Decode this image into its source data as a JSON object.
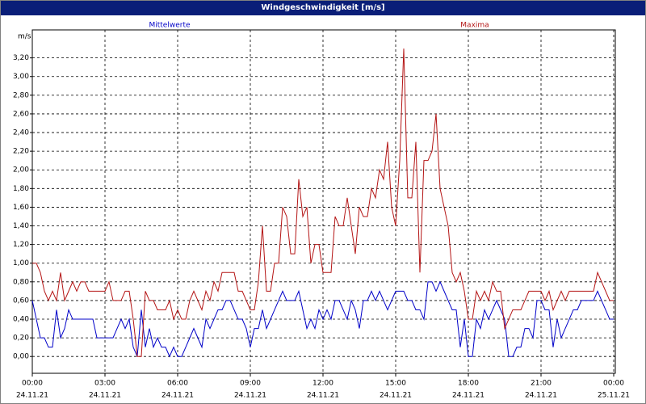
{
  "chart_data": {
    "type": "line",
    "title": "Windgeschwindigkeit [m/s]",
    "ylabel": "m/s",
    "x": [
      0,
      10,
      20,
      30,
      40,
      50,
      60,
      70,
      80,
      90,
      100,
      110,
      120,
      130,
      140,
      150,
      160,
      170,
      180,
      190,
      200,
      210,
      220,
      230,
      240,
      250,
      260,
      270,
      280,
      290,
      300,
      310,
      320,
      330,
      340,
      350,
      360,
      370,
      380,
      390,
      400,
      410,
      420,
      430,
      440,
      450,
      460,
      470,
      480,
      490,
      500,
      510,
      520,
      530,
      540,
      550,
      560,
      570,
      580,
      590,
      600,
      610,
      620,
      630,
      640,
      650,
      660,
      670,
      680,
      690,
      700,
      710,
      720,
      730,
      740,
      750,
      760,
      770,
      780,
      790,
      800,
      810,
      820,
      830,
      840,
      850,
      860,
      870,
      880,
      890,
      900,
      910,
      920,
      930,
      940,
      950,
      960,
      970,
      980,
      990,
      1000,
      1010,
      1020,
      1030,
      1040,
      1050,
      1060,
      1070,
      1080,
      1090,
      1100,
      1110,
      1120,
      1130,
      1140,
      1150,
      1160,
      1170,
      1180,
      1190,
      1200,
      1210,
      1220,
      1230,
      1240,
      1250,
      1260,
      1270,
      1280,
      1290,
      1300,
      1310,
      1320,
      1330,
      1340,
      1350,
      1360,
      1370,
      1380,
      1390,
      1400,
      1410,
      1420,
      1430,
      1440
    ],
    "series": [
      {
        "name": "Mittelwerte",
        "color": "#0000c8",
        "values": [
          0.6,
          0.4,
          0.2,
          0.2,
          0.1,
          0.1,
          0.5,
          0.2,
          0.3,
          0.5,
          0.4,
          0.4,
          0.4,
          0.4,
          0.4,
          0.4,
          0.2,
          0.2,
          0.2,
          0.2,
          0.2,
          0.3,
          0.4,
          0.3,
          0.4,
          0.1,
          0.0,
          0.5,
          0.1,
          0.3,
          0.1,
          0.2,
          0.1,
          0.1,
          0.0,
          0.1,
          0.0,
          0.0,
          0.1,
          0.2,
          0.3,
          0.2,
          0.1,
          0.4,
          0.3,
          0.4,
          0.5,
          0.5,
          0.6,
          0.6,
          0.5,
          0.4,
          0.4,
          0.3,
          0.1,
          0.3,
          0.3,
          0.5,
          0.3,
          0.4,
          0.5,
          0.6,
          0.7,
          0.6,
          0.6,
          0.6,
          0.7,
          0.5,
          0.3,
          0.4,
          0.3,
          0.5,
          0.4,
          0.5,
          0.4,
          0.6,
          0.6,
          0.5,
          0.4,
          0.6,
          0.5,
          0.3,
          0.6,
          0.6,
          0.7,
          0.6,
          0.7,
          0.6,
          0.5,
          0.6,
          0.7,
          0.7,
          0.7,
          0.6,
          0.6,
          0.5,
          0.5,
          0.4,
          0.8,
          0.8,
          0.7,
          0.8,
          0.7,
          0.6,
          0.5,
          0.5,
          0.1,
          0.4,
          0.0,
          0.0,
          0.4,
          0.3,
          0.5,
          0.4,
          0.5,
          0.6,
          0.5,
          0.4,
          0.0,
          0.0,
          0.1,
          0.1,
          0.3,
          0.3,
          0.2,
          0.6,
          0.6,
          0.5,
          0.5,
          0.1,
          0.4,
          0.2,
          0.3,
          0.4,
          0.5,
          0.5,
          0.6,
          0.6,
          0.6,
          0.6,
          0.7,
          0.6,
          0.5,
          0.4,
          0.4
        ]
      },
      {
        "name": "Maxima",
        "color": "#b41414",
        "values": [
          1.0,
          1.0,
          0.9,
          0.7,
          0.6,
          0.7,
          0.6,
          0.9,
          0.6,
          0.7,
          0.8,
          0.7,
          0.8,
          0.8,
          0.7,
          0.7,
          0.7,
          0.7,
          0.7,
          0.8,
          0.6,
          0.6,
          0.6,
          0.7,
          0.7,
          0.4,
          0.0,
          0.0,
          0.7,
          0.6,
          0.6,
          0.5,
          0.5,
          0.5,
          0.6,
          0.4,
          0.5,
          0.4,
          0.4,
          0.6,
          0.7,
          0.6,
          0.5,
          0.7,
          0.6,
          0.8,
          0.7,
          0.9,
          0.9,
          0.9,
          0.9,
          0.7,
          0.7,
          0.6,
          0.5,
          0.5,
          0.8,
          1.4,
          0.7,
          0.7,
          1.0,
          1.0,
          1.6,
          1.5,
          1.1,
          1.1,
          1.9,
          1.5,
          1.6,
          1.0,
          1.2,
          1.2,
          0.9,
          0.9,
          0.9,
          1.5,
          1.4,
          1.4,
          1.7,
          1.4,
          1.1,
          1.6,
          1.5,
          1.5,
          1.8,
          1.7,
          2.0,
          1.9,
          2.3,
          1.6,
          1.4,
          2.1,
          3.3,
          1.7,
          1.7,
          2.3,
          0.9,
          2.1,
          2.1,
          2.2,
          2.6,
          1.8,
          1.6,
          1.4,
          0.9,
          0.8,
          0.9,
          0.7,
          0.4,
          0.4,
          0.7,
          0.6,
          0.7,
          0.6,
          0.8,
          0.7,
          0.7,
          0.3,
          0.4,
          0.5,
          0.5,
          0.5,
          0.6,
          0.7,
          0.7,
          0.7,
          0.7,
          0.6,
          0.7,
          0.5,
          0.6,
          0.7,
          0.6,
          0.7,
          0.7,
          0.7,
          0.7,
          0.7,
          0.7,
          0.7,
          0.9,
          0.8,
          0.7,
          0.6,
          0.6
        ]
      }
    ],
    "xlim": [
      0,
      1440
    ],
    "xticks": [
      {
        "value": 0,
        "label": "00:00",
        "date": "24.11.21"
      },
      {
        "value": 180,
        "label": "03:00",
        "date": "24.11.21"
      },
      {
        "value": 360,
        "label": "06:00",
        "date": "24.11.21"
      },
      {
        "value": 540,
        "label": "09:00",
        "date": "24.11.21"
      },
      {
        "value": 720,
        "label": "12:00",
        "date": "24.11.21"
      },
      {
        "value": 900,
        "label": "15:00",
        "date": "24.11.21"
      },
      {
        "value": 1080,
        "label": "18:00",
        "date": "24.11.21"
      },
      {
        "value": 1260,
        "label": "21:00",
        "date": "24.11.21"
      },
      {
        "value": 1440,
        "label": "00:00",
        "date": "25.11.21"
      }
    ],
    "ylim": [
      -0.18,
      3.5
    ],
    "yticks": [
      {
        "value": 0,
        "label": "0,00"
      },
      {
        "value": 0.2,
        "label": "0,20"
      },
      {
        "value": 0.4,
        "label": "0,40"
      },
      {
        "value": 0.6,
        "label": "0,60"
      },
      {
        "value": 0.8,
        "label": "0,80"
      },
      {
        "value": 1.0,
        "label": "1,00"
      },
      {
        "value": 1.2,
        "label": "1,20"
      },
      {
        "value": 1.4,
        "label": "1,40"
      },
      {
        "value": 1.6,
        "label": "1,60"
      },
      {
        "value": 1.8,
        "label": "1,80"
      },
      {
        "value": 2.0,
        "label": "2,00"
      },
      {
        "value": 2.2,
        "label": "2,20"
      },
      {
        "value": 2.4,
        "label": "2,40"
      },
      {
        "value": 2.6,
        "label": "2,60"
      },
      {
        "value": 2.8,
        "label": "2,80"
      },
      {
        "value": 3.0,
        "label": "3,00"
      },
      {
        "value": 3.2,
        "label": "3,20"
      }
    ],
    "grid": true
  }
}
